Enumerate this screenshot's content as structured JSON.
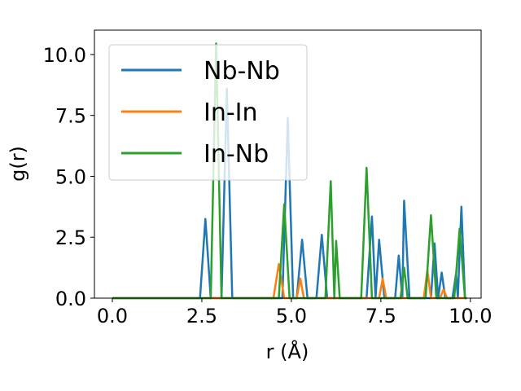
{
  "chart_data": {
    "type": "line",
    "xlabel": "r (Å)",
    "ylabel": "g(r)",
    "xlim": [
      -0.5,
      10.3
    ],
    "ylim": [
      0,
      11
    ],
    "xticks": [
      0.0,
      2.5,
      5.0,
      7.5,
      10.0
    ],
    "xtick_labels": [
      "0.0",
      "2.5",
      "5.0",
      "7.5",
      "10.0"
    ],
    "yticks": [
      0.0,
      2.5,
      5.0,
      7.5,
      10.0
    ],
    "ytick_labels": [
      "0.0",
      "2.5",
      "5.0",
      "7.5",
      "10.0"
    ],
    "grid": false,
    "legend_position": "top-left",
    "series": [
      {
        "name": "Nb-Nb",
        "color": "#1f77b4",
        "points": [
          [
            0.0,
            0
          ],
          [
            2.45,
            0
          ],
          [
            2.6,
            3.25
          ],
          [
            2.75,
            0
          ],
          [
            3.05,
            0
          ],
          [
            3.2,
            8.6
          ],
          [
            3.35,
            0
          ],
          [
            4.75,
            0
          ],
          [
            4.9,
            7.4
          ],
          [
            5.05,
            0
          ],
          [
            5.15,
            0
          ],
          [
            5.3,
            2.4
          ],
          [
            5.45,
            0
          ],
          [
            5.7,
            0
          ],
          [
            5.85,
            2.6
          ],
          [
            6.0,
            0
          ],
          [
            7.1,
            0
          ],
          [
            7.25,
            3.35
          ],
          [
            7.35,
            0
          ],
          [
            7.45,
            2.4
          ],
          [
            7.6,
            0
          ],
          [
            7.9,
            0
          ],
          [
            8.0,
            1.75
          ],
          [
            8.1,
            0
          ],
          [
            8.15,
            4.0
          ],
          [
            8.3,
            0
          ],
          [
            8.9,
            0
          ],
          [
            9.0,
            2.25
          ],
          [
            9.1,
            0
          ],
          [
            9.2,
            1.05
          ],
          [
            9.3,
            0
          ],
          [
            9.5,
            0
          ],
          [
            9.6,
            1.0
          ],
          [
            9.65,
            0
          ],
          [
            9.75,
            3.75
          ],
          [
            9.85,
            0
          ],
          [
            9.9,
            0
          ]
        ]
      },
      {
        "name": "In-In",
        "color": "#ff7f0e",
        "points": [
          [
            0.0,
            0
          ],
          [
            4.5,
            0
          ],
          [
            4.65,
            1.4
          ],
          [
            4.8,
            0
          ],
          [
            5.15,
            0
          ],
          [
            5.25,
            0.8
          ],
          [
            5.35,
            0
          ],
          [
            7.45,
            0
          ],
          [
            7.55,
            0.8
          ],
          [
            7.65,
            0
          ],
          [
            8.7,
            0
          ],
          [
            8.8,
            1.15
          ],
          [
            8.9,
            0
          ],
          [
            9.15,
            0
          ],
          [
            9.25,
            0.35
          ],
          [
            9.35,
            0
          ],
          [
            9.9,
            0
          ]
        ]
      },
      {
        "name": "In-Nb",
        "color": "#2ca02c",
        "points": [
          [
            0.0,
            0
          ],
          [
            2.75,
            0
          ],
          [
            2.9,
            10.45
          ],
          [
            3.05,
            0
          ],
          [
            4.65,
            0
          ],
          [
            4.8,
            3.85
          ],
          [
            4.95,
            0
          ],
          [
            5.95,
            0
          ],
          [
            6.1,
            4.8
          ],
          [
            6.2,
            0
          ],
          [
            6.25,
            2.35
          ],
          [
            6.35,
            0
          ],
          [
            6.95,
            0
          ],
          [
            7.1,
            5.35
          ],
          [
            7.25,
            0
          ],
          [
            8.05,
            0
          ],
          [
            8.15,
            1.25
          ],
          [
            8.25,
            0
          ],
          [
            8.75,
            0
          ],
          [
            8.9,
            3.4
          ],
          [
            9.05,
            0
          ],
          [
            9.55,
            0
          ],
          [
            9.7,
            2.85
          ],
          [
            9.85,
            0
          ],
          [
            9.9,
            0
          ]
        ]
      }
    ]
  }
}
